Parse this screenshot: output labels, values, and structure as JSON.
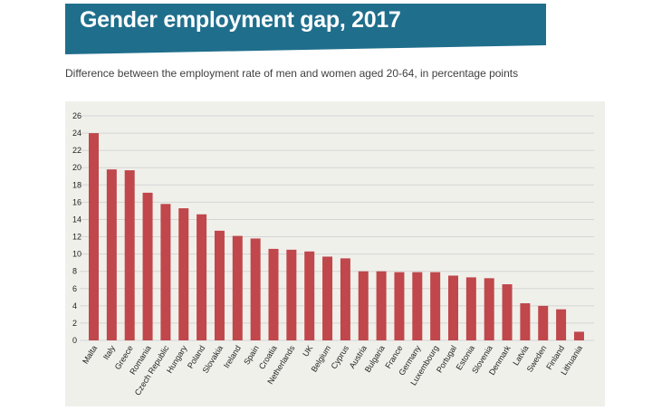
{
  "header": {
    "title": "Gender employment gap, 2017",
    "subtitle": "Difference between the employment rate of men and women aged 20-64, in percentage points"
  },
  "colors": {
    "banner": "#1f6e8c",
    "bar": "#c0474b",
    "panel": "#f0f0eb",
    "grid": "#d4d4d4"
  },
  "chart_data": {
    "type": "bar",
    "title": "Gender employment gap, 2017",
    "subtitle": "Difference between the employment rate of men and women aged 20-64, in percentage points",
    "xlabel": "",
    "ylabel": "",
    "ylim": [
      0,
      26
    ],
    "yticks": [
      0,
      2,
      4,
      6,
      8,
      10,
      12,
      14,
      16,
      18,
      20,
      22,
      24,
      26
    ],
    "grid": true,
    "categories": [
      "Malta",
      "Italy",
      "Greece",
      "Romania",
      "Czech Republic",
      "Hungary",
      "Poland",
      "Slovakia",
      "Ireland",
      "Spain",
      "Croatia",
      "Netherlands",
      "UK",
      "Belgium",
      "Cyprus",
      "Austria",
      "Bulgaria",
      "France",
      "Germany",
      "Luxembourg",
      "Portugal",
      "Estonia",
      "Slovenia",
      "Denmark",
      "Latvia",
      "Sweden",
      "Finland",
      "Lithuania"
    ],
    "values": [
      24.0,
      19.8,
      19.7,
      17.1,
      15.8,
      15.3,
      14.6,
      12.7,
      12.1,
      11.8,
      10.6,
      10.5,
      10.3,
      9.7,
      9.5,
      8.0,
      8.0,
      7.9,
      7.9,
      7.9,
      7.5,
      7.3,
      7.2,
      6.5,
      4.3,
      4.0,
      3.6,
      1.0
    ]
  }
}
